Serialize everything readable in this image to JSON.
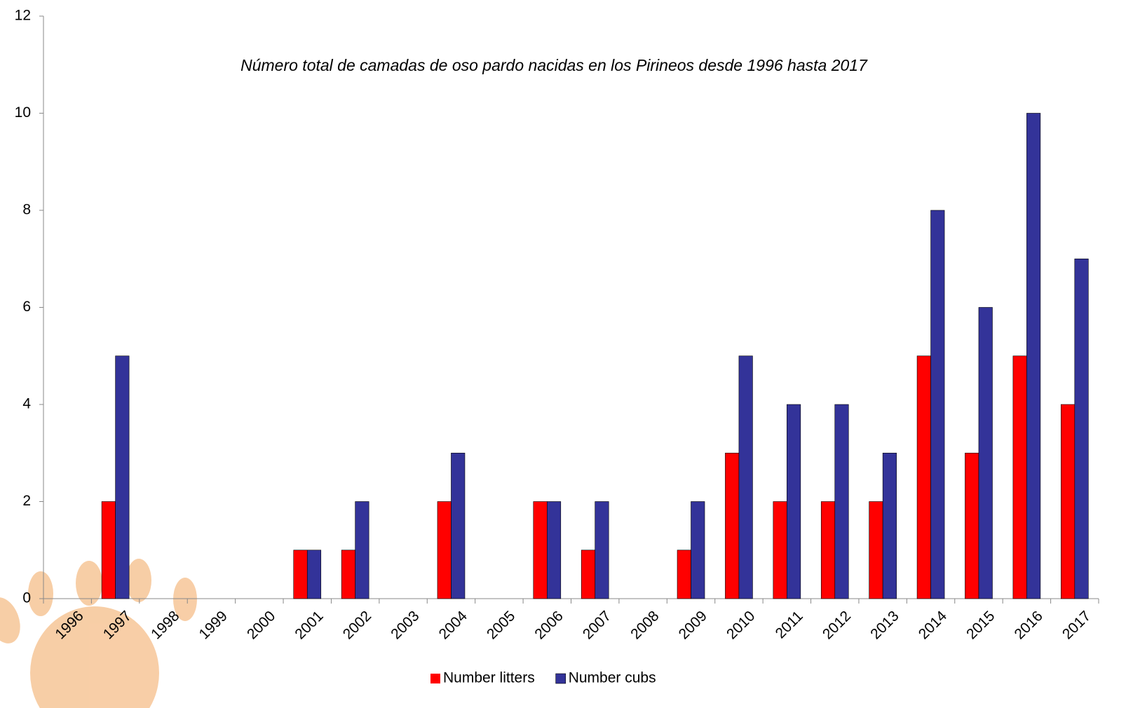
{
  "chart_data": {
    "type": "bar",
    "title": "Número total de camadas de oso pardo nacidas en los Pirineos desde 1996 hasta 2017",
    "categories": [
      "1996",
      "1997",
      "1998",
      "1999",
      "2000",
      "2001",
      "2002",
      "2003",
      "2004",
      "2005",
      "2006",
      "2007",
      "2008",
      "2009",
      "2010",
      "2011",
      "2012",
      "2013",
      "2014",
      "2015",
      "2016",
      "2017"
    ],
    "series": [
      {
        "name": "Number litters",
        "color": "#ff0000",
        "values": [
          0,
          2,
          0,
          0,
          0,
          1,
          1,
          0,
          2,
          0,
          2,
          1,
          0,
          1,
          3,
          2,
          2,
          2,
          5,
          3,
          5,
          4
        ]
      },
      {
        "name": "Number cubs",
        "color": "#333399",
        "values": [
          0,
          5,
          0,
          0,
          0,
          1,
          2,
          0,
          3,
          0,
          2,
          2,
          0,
          2,
          5,
          4,
          4,
          3,
          8,
          6,
          10,
          7
        ]
      }
    ],
    "ylim": [
      0,
      12
    ],
    "yticks": [
      0,
      2,
      4,
      6,
      8,
      10,
      12
    ],
    "grid": false,
    "legend": "bottom"
  }
}
